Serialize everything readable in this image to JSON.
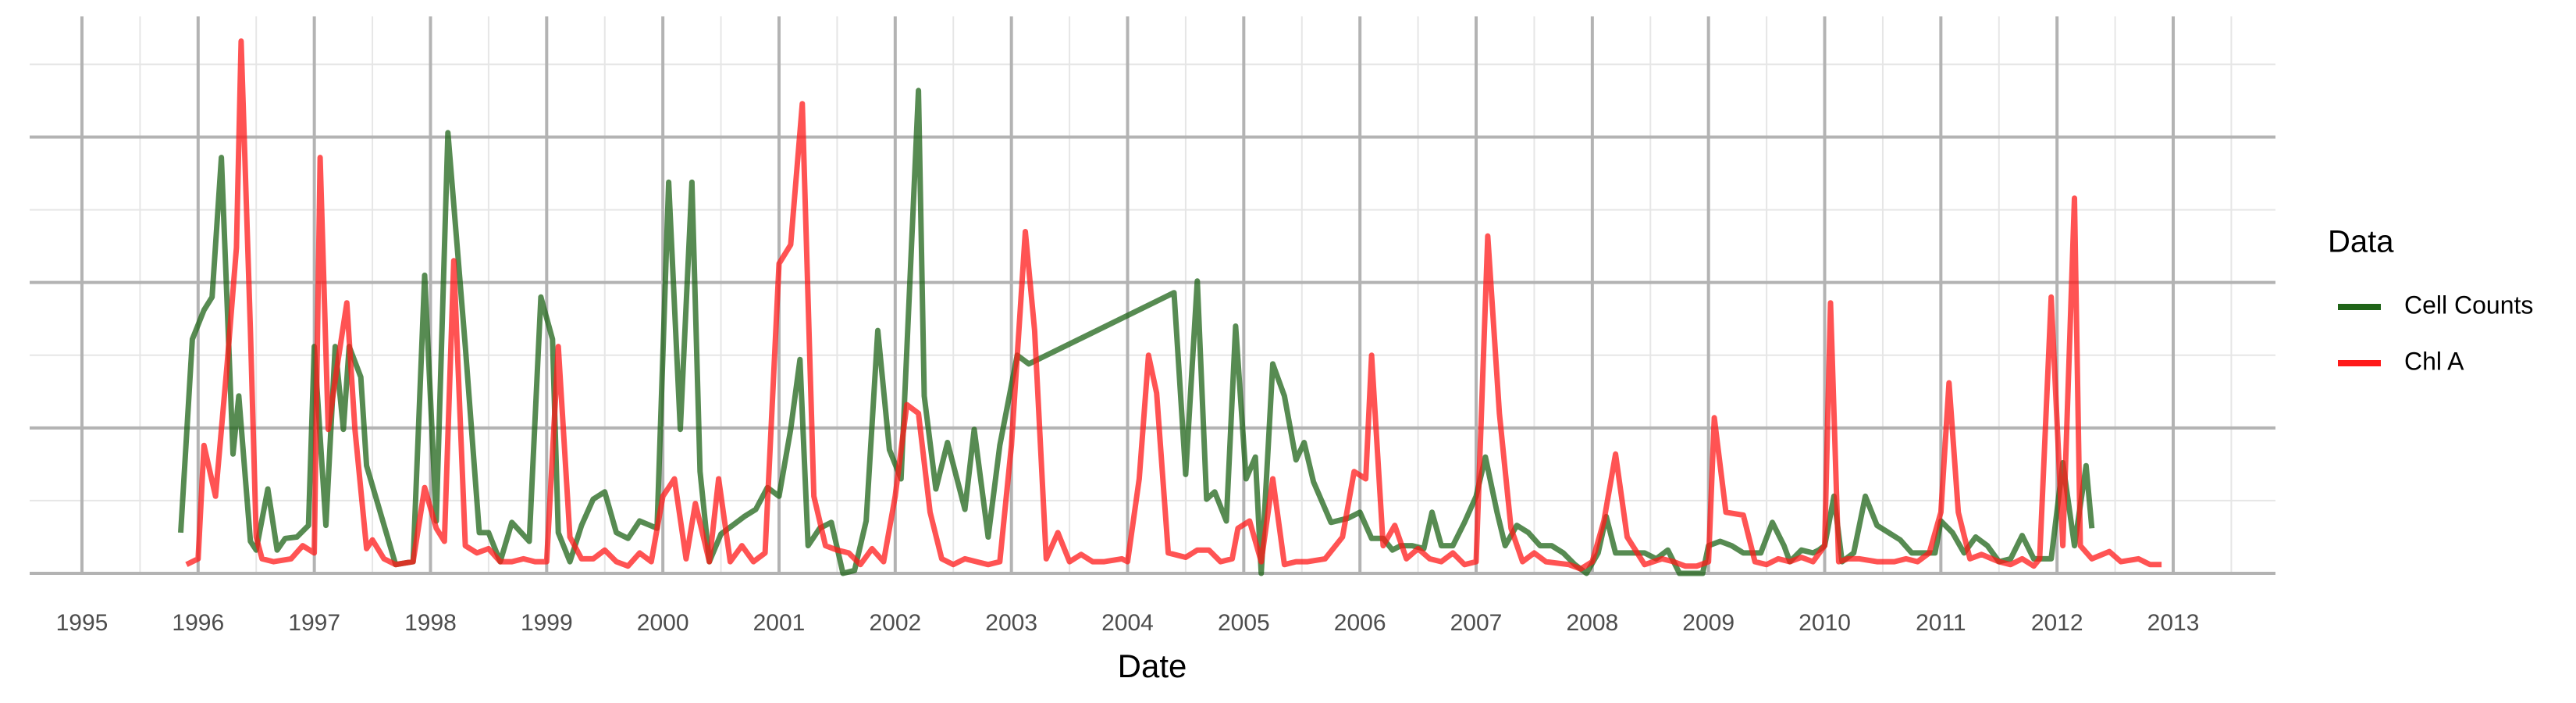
{
  "chart_data": {
    "type": "line",
    "x_label": "Date",
    "legend_title": "Data",
    "legend": "right",
    "grid": true,
    "xlim": [
      1994.55,
      2013.88
    ],
    "xticks": [
      1995,
      1996,
      1997,
      1998,
      1999,
      2000,
      2001,
      2002,
      2003,
      2004,
      2005,
      2006,
      2007,
      2008,
      2009,
      2010,
      2011,
      2012,
      2013
    ],
    "ylim": [
      0,
      3.83
    ],
    "yticks": [
      0,
      1,
      2,
      3
    ],
    "series": [
      {
        "name": "Cell Counts",
        "color": "#1f6418",
        "x": [
          1995.85,
          1995.95,
          1996.05,
          1996.12,
          1996.2,
          1996.3,
          1996.35,
          1996.45,
          1996.5,
          1996.6,
          1996.68,
          1996.75,
          1996.85,
          1996.95,
          1997.0,
          1997.1,
          1997.18,
          1997.25,
          1997.3,
          1997.4,
          1997.45,
          1997.7,
          1997.85,
          1997.95,
          1998.05,
          1998.15,
          1998.3,
          1998.42,
          1998.5,
          1998.6,
          1998.7,
          1998.85,
          1998.95,
          1999.05,
          1999.1,
          1999.2,
          1999.3,
          1999.4,
          1999.5,
          1999.6,
          1999.7,
          1999.8,
          1999.95,
          2000.05,
          2000.15,
          2000.25,
          2000.32,
          2000.4,
          2000.5,
          2000.6,
          2000.7,
          2000.8,
          2000.9,
          2001.0,
          2001.1,
          2001.18,
          2001.25,
          2001.35,
          2001.45,
          2001.55,
          2001.65,
          2001.75,
          2001.85,
          2001.95,
          2002.05,
          2002.2,
          2002.25,
          2002.35,
          2002.45,
          2002.6,
          2002.68,
          2002.8,
          2002.9,
          2003.05,
          2003.15,
          2004.4,
          2004.5,
          2004.6,
          2004.68,
          2004.75,
          2004.85,
          2004.93,
          2005.02,
          2005.1,
          2005.15,
          2005.25,
          2005.35,
          2005.45,
          2005.52,
          2005.6,
          2005.75,
          2005.9,
          2006.0,
          2006.1,
          2006.2,
          2006.28,
          2006.35,
          2006.45,
          2006.55,
          2006.62,
          2006.7,
          2006.8,
          2006.9,
          2007.0,
          2007.08,
          2007.18,
          2007.25,
          2007.35,
          2007.45,
          2007.55,
          2007.65,
          2007.75,
          2007.85,
          2007.95,
          2008.05,
          2008.12,
          2008.2,
          2008.3,
          2008.45,
          2008.55,
          2008.65,
          2008.75,
          2008.85,
          2008.95,
          2009.0,
          2009.1,
          2009.2,
          2009.3,
          2009.45,
          2009.55,
          2009.65,
          2009.7,
          2009.8,
          2009.9,
          2009.95,
          2010.0,
          2010.08,
          2010.15,
          2010.25,
          2010.35,
          2010.45,
          2010.55,
          2010.65,
          2010.75,
          2010.85,
          2010.95,
          2011.0,
          2011.1,
          2011.2,
          2011.3,
          2011.4,
          2011.5,
          2011.6,
          2011.7,
          2011.8,
          2011.95,
          2012.05,
          2012.15,
          2012.25,
          2012.3
        ],
        "values": [
          0.28,
          1.61,
          1.81,
          1.9,
          2.86,
          0.82,
          1.22,
          0.22,
          0.16,
          0.58,
          0.16,
          0.24,
          0.25,
          0.33,
          1.56,
          0.33,
          1.56,
          0.99,
          1.56,
          1.35,
          0.74,
          0.06,
          0.08,
          2.05,
          0.36,
          3.03,
          1.56,
          0.28,
          0.28,
          0.08,
          0.35,
          0.22,
          1.9,
          1.61,
          0.28,
          0.08,
          0.33,
          0.51,
          0.56,
          0.28,
          0.24,
          0.36,
          0.31,
          2.69,
          0.99,
          2.69,
          0.7,
          0.08,
          0.27,
          0.33,
          0.39,
          0.44,
          0.59,
          0.53,
          0.99,
          1.47,
          0.19,
          0.31,
          0.35,
          0,
          0.02,
          0.36,
          1.67,
          0.85,
          0.65,
          3.32,
          1.22,
          0.58,
          0.9,
          0.44,
          0.99,
          0.25,
          0.88,
          1.5,
          1.44,
          1.93,
          0.68,
          2.01,
          0.51,
          0.56,
          0.36,
          1.7,
          0.65,
          0.8,
          0,
          1.44,
          1.22,
          0.78,
          0.9,
          0.63,
          0.35,
          0.38,
          0.42,
          0.24,
          0.24,
          0.16,
          0.19,
          0.19,
          0.17,
          0.42,
          0.19,
          0.19,
          0.35,
          0.53,
          0.8,
          0.42,
          0.19,
          0.33,
          0.28,
          0.19,
          0.19,
          0.14,
          0.06,
          0,
          0.14,
          0.39,
          0.14,
          0.14,
          0.14,
          0.1,
          0.16,
          0,
          0,
          0,
          0.19,
          0.22,
          0.19,
          0.14,
          0.14,
          0.35,
          0.19,
          0.08,
          0.16,
          0.14,
          0.16,
          0.19,
          0.53,
          0.08,
          0.14,
          0.53,
          0.33,
          0.28,
          0.23,
          0.14,
          0.14,
          0.14,
          0.36,
          0.28,
          0.14,
          0.25,
          0.19,
          0.08,
          0.1,
          0.26,
          0.1,
          0.1,
          0.76,
          0.19,
          0.74,
          0.31
        ]
      },
      {
        "name": "Chl A",
        "color": "#ff1a1a",
        "x": [
          1995.9,
          1996.0,
          1996.05,
          1996.15,
          1996.25,
          1996.33,
          1996.37,
          1996.45,
          1996.5,
          1996.55,
          1996.65,
          1996.8,
          1996.9,
          1997.0,
          1997.05,
          1997.12,
          1997.2,
          1997.28,
          1997.35,
          1997.45,
          1997.5,
          1997.6,
          1997.7,
          1997.85,
          1997.95,
          1998.05,
          1998.12,
          1998.2,
          1998.3,
          1998.4,
          1998.5,
          1998.6,
          1998.7,
          1998.8,
          1998.9,
          1999.0,
          1999.1,
          1999.2,
          1999.3,
          1999.4,
          1999.5,
          1999.6,
          1999.7,
          1999.8,
          1999.9,
          2000.0,
          2000.1,
          2000.2,
          2000.28,
          2000.4,
          2000.48,
          2000.58,
          2000.68,
          2000.78,
          2000.88,
          2001.0,
          2001.1,
          2001.2,
          2001.3,
          2001.4,
          2001.5,
          2001.6,
          2001.7,
          2001.8,
          2001.9,
          2002.0,
          2002.1,
          2002.2,
          2002.3,
          2002.4,
          2002.5,
          2002.6,
          2002.7,
          2002.8,
          2002.9,
          2003.0,
          2003.12,
          2003.2,
          2003.3,
          2003.4,
          2003.5,
          2003.6,
          2003.7,
          2003.8,
          2003.95,
          2004.0,
          2004.1,
          2004.18,
          2004.25,
          2004.35,
          2004.5,
          2004.6,
          2004.7,
          2004.8,
          2004.9,
          2004.95,
          2005.05,
          2005.15,
          2005.25,
          2005.35,
          2005.45,
          2005.55,
          2005.7,
          2005.85,
          2005.95,
          2006.05,
          2006.1,
          2006.2,
          2006.3,
          2006.4,
          2006.5,
          2006.6,
          2006.7,
          2006.8,
          2006.9,
          2007.0,
          2007.1,
          2007.2,
          2007.3,
          2007.4,
          2007.5,
          2007.6,
          2007.8,
          2007.9,
          2008.0,
          2008.1,
          2008.2,
          2008.3,
          2008.45,
          2008.6,
          2008.7,
          2008.8,
          2008.9,
          2009.0,
          2009.05,
          2009.15,
          2009.3,
          2009.4,
          2009.5,
          2009.6,
          2009.7,
          2009.8,
          2009.9,
          2010.0,
          2010.05,
          2010.12,
          2010.2,
          2010.3,
          2010.45,
          2010.6,
          2010.7,
          2010.8,
          2010.9,
          2011.0,
          2011.07,
          2011.15,
          2011.25,
          2011.35,
          2011.5,
          2011.6,
          2011.7,
          2011.8,
          2011.85,
          2011.95,
          2012.05,
          2012.15,
          2012.2,
          2012.3,
          2012.45,
          2012.55,
          2012.7,
          2012.8,
          2012.9
        ],
        "values": [
          0.06,
          0.1,
          0.88,
          0.53,
          1.44,
          2.24,
          3.66,
          1.67,
          0.25,
          0.1,
          0.08,
          0.1,
          0.19,
          0.14,
          2.86,
          0.99,
          1.44,
          1.86,
          0.99,
          0.17,
          0.23,
          0.1,
          0.06,
          0.08,
          0.59,
          0.31,
          0.22,
          2.15,
          0.19,
          0.14,
          0.17,
          0.08,
          0.08,
          0.1,
          0.08,
          0.08,
          1.56,
          0.25,
          0.1,
          0.1,
          0.16,
          0.08,
          0.05,
          0.14,
          0.08,
          0.53,
          0.65,
          0.1,
          0.48,
          0.08,
          0.65,
          0.08,
          0.19,
          0.08,
          0.14,
          2.13,
          2.26,
          3.23,
          0.53,
          0.19,
          0.16,
          0.14,
          0.06,
          0.17,
          0.08,
          0.53,
          1.16,
          1.1,
          0.42,
          0.1,
          0.06,
          0.1,
          0.08,
          0.06,
          0.08,
          0.88,
          2.35,
          1.67,
          0.1,
          0.28,
          0.08,
          0.13,
          0.08,
          0.08,
          0.1,
          0.08,
          0.65,
          1.5,
          1.24,
          0.14,
          0.11,
          0.16,
          0.16,
          0.08,
          0.1,
          0.31,
          0.36,
          0.08,
          0.65,
          0.06,
          0.08,
          0.08,
          0.1,
          0.25,
          0.7,
          0.65,
          1.5,
          0.19,
          0.33,
          0.1,
          0.17,
          0.1,
          0.08,
          0.14,
          0.06,
          0.08,
          2.32,
          1.1,
          0.31,
          0.08,
          0.14,
          0.08,
          0.06,
          0.03,
          0.08,
          0.36,
          0.82,
          0.25,
          0.06,
          0.1,
          0.08,
          0.05,
          0.05,
          0.08,
          1.07,
          0.42,
          0.4,
          0.08,
          0.06,
          0.1,
          0.08,
          0.11,
          0.08,
          0.19,
          1.86,
          0.08,
          0.1,
          0.1,
          0.08,
          0.08,
          0.1,
          0.08,
          0.14,
          0.42,
          1.31,
          0.42,
          0.1,
          0.13,
          0.08,
          0.06,
          0.1,
          0.05,
          0.1,
          1.9,
          0.19,
          2.58,
          0.19,
          0.1,
          0.15,
          0.08,
          0.1,
          0.06,
          0.06
        ]
      }
    ]
  }
}
